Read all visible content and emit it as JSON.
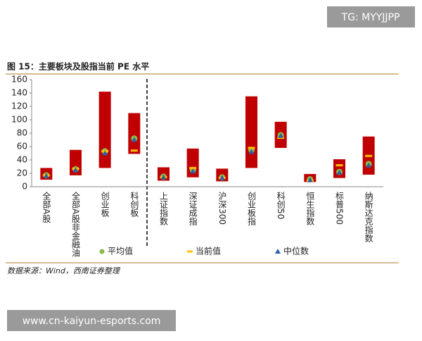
{
  "watermark": "TG: MYYJJPP",
  "footer_url": "www.cn-kaiyun-esports.com",
  "source": "数据来源：Wind，西南证券整理",
  "chart_data": {
    "type": "range-bar",
    "title": "图 15：主要板块及股指当前 PE 水平",
    "categories": [
      "全部A股",
      "全部A股非金融油",
      "创业板",
      "科创板",
      "上证指数",
      "深证成指",
      "沪深300",
      "创业板指",
      "科创50",
      "恒生指数",
      "标普500",
      "纳斯达克指数"
    ],
    "range_color": "#c00000",
    "range_low": [
      10.5,
      17,
      28,
      49,
      9,
      14,
      8,
      28,
      58,
      7,
      13,
      18
    ],
    "range_high": [
      28,
      55,
      142,
      110,
      29,
      57,
      27,
      135,
      97,
      19,
      41,
      75
    ],
    "series": [
      {
        "name": "平均值",
        "marker": "circle",
        "color": "#8db84a",
        "values": [
          17,
          26,
          53,
          72,
          15,
          25,
          14,
          55,
          77,
          11,
          22,
          34
        ]
      },
      {
        "name": "当前值",
        "marker": "dash",
        "color": "#ffc000",
        "values": [
          17,
          27,
          53,
          54,
          14,
          28,
          13,
          58,
          73,
          9,
          32,
          46
        ]
      },
      {
        "name": "中位数",
        "marker": "triangle",
        "color": "#2e5fa8",
        "values": [
          16,
          25,
          50,
          70,
          14,
          23,
          13,
          52,
          76,
          10,
          21,
          32
        ]
      }
    ],
    "ylim": [
      0,
      160
    ],
    "yticks": [
      0,
      20,
      40,
      60,
      80,
      100,
      120,
      140,
      160
    ],
    "grid": false
  }
}
